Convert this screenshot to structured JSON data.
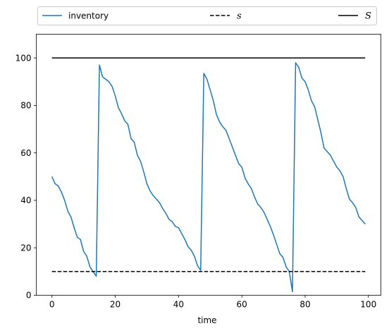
{
  "chart_data": {
    "type": "line",
    "xlabel": "time",
    "ylabel": "",
    "xlim": [
      -4.95,
      103.95
    ],
    "ylim": [
      0,
      110
    ],
    "xticks": [
      0,
      20,
      40,
      60,
      80,
      100
    ],
    "yticks": [
      0,
      20,
      40,
      60,
      80,
      100
    ],
    "legend_position": "above-plot",
    "grid": false,
    "series": [
      {
        "name": "inventory",
        "style": "solid",
        "color": "#1f77b4",
        "x": [
          0,
          1,
          2,
          3,
          4,
          5,
          6,
          7,
          8,
          9,
          10,
          11,
          12,
          13,
          14,
          15,
          16,
          17,
          18,
          19,
          20,
          21,
          22,
          23,
          24,
          25,
          26,
          27,
          28,
          29,
          30,
          31,
          32,
          33,
          34,
          35,
          36,
          37,
          38,
          39,
          40,
          41,
          42,
          43,
          44,
          45,
          46,
          47,
          48,
          49,
          50,
          51,
          52,
          53,
          54,
          55,
          56,
          57,
          58,
          59,
          60,
          61,
          62,
          63,
          64,
          65,
          66,
          67,
          68,
          69,
          70,
          71,
          72,
          73,
          74,
          75,
          76,
          77,
          78,
          79,
          80,
          81,
          82,
          83,
          84,
          85,
          86,
          87,
          88,
          89,
          90,
          91,
          92,
          93,
          94,
          95,
          96,
          97,
          98,
          99
        ],
        "values": [
          50,
          47,
          46,
          43.5,
          40,
          35.5,
          33,
          28.5,
          24.5,
          23.5,
          18.5,
          16.5,
          12,
          10,
          8,
          97,
          92,
          91,
          90,
          88,
          84,
          79,
          76.5,
          73.5,
          72,
          66,
          64.5,
          59,
          56.5,
          52,
          47,
          44,
          42,
          40.5,
          39,
          36.5,
          34.5,
          32,
          31,
          29,
          28.5,
          26,
          23.5,
          20.5,
          19,
          16.5,
          12.5,
          10.5,
          93.5,
          91,
          86.5,
          82,
          76,
          73,
          71,
          69.5,
          66,
          62.5,
          59,
          55.5,
          54,
          49.5,
          47,
          45,
          41.5,
          38.5,
          37,
          35,
          32,
          29,
          25.5,
          21.5,
          17.5,
          16,
          12,
          10,
          1.5,
          98,
          96,
          91.5,
          90,
          86.5,
          82,
          79.5,
          74,
          68.5,
          62,
          60.5,
          59,
          56.5,
          54,
          52.5,
          50,
          45,
          40.5,
          39,
          37,
          33,
          31.5,
          30
        ]
      },
      {
        "name": "s",
        "style": "dashed",
        "color": "#000000",
        "x": [
          0,
          99
        ],
        "values": [
          10,
          10
        ]
      },
      {
        "name": "S",
        "style": "solid",
        "color": "#000000",
        "x": [
          0,
          99
        ],
        "values": [
          100,
          100
        ]
      }
    ]
  }
}
